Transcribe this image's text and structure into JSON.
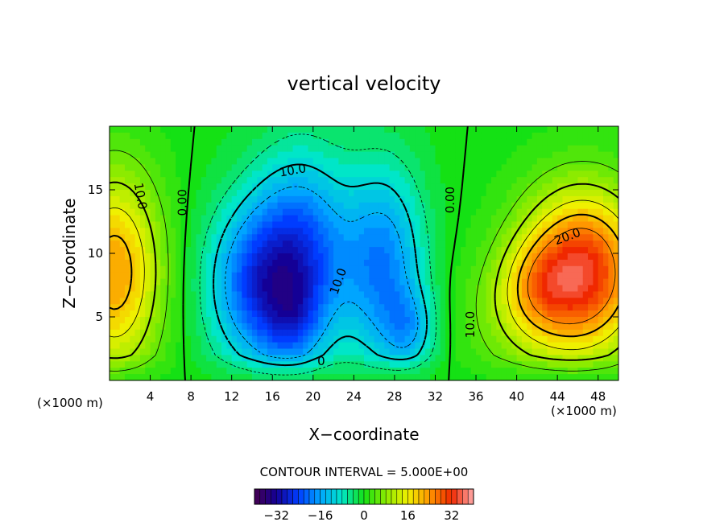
{
  "chart_data": {
    "type": "heatmap",
    "title": "vertical velocity",
    "xlabel": "X−coordinate",
    "ylabel": "Z−coordinate",
    "x_unit_left": "(×1000 m)",
    "x_unit_right": "(×1000 m)",
    "xlim": [
      0,
      50
    ],
    "ylim": [
      0,
      20
    ],
    "x_ticks": [
      4,
      8,
      12,
      16,
      20,
      24,
      28,
      32,
      36,
      40,
      44,
      48
    ],
    "y_ticks": [
      5,
      10,
      15
    ],
    "contour_interval_text": "CONTOUR INTERVAL = 5.000E+00",
    "colorbar": {
      "min": -40,
      "max": 40,
      "ticks": [
        -32,
        -16,
        0,
        16,
        32
      ],
      "tick_labels": [
        "−32",
        "−16",
        "0",
        "16",
        "32"
      ]
    },
    "contour_labels": [
      {
        "text": "10.0",
        "x": 3.0,
        "z": 14.5,
        "rotate": 80
      },
      {
        "text": "0.00",
        "x": 7.2,
        "z": 14.0,
        "rotate": -90
      },
      {
        "text": "10.0",
        "x": 18.0,
        "z": 16.5,
        "rotate": -10
      },
      {
        "text": "10.0",
        "x": 22.5,
        "z": 7.8,
        "rotate": -70
      },
      {
        "text": "0",
        "x": 20.8,
        "z": 1.5,
        "rotate": 0
      },
      {
        "text": "0.00",
        "x": 33.5,
        "z": 14.2,
        "rotate": -90
      },
      {
        "text": "10.0",
        "x": 35.5,
        "z": 4.4,
        "rotate": -90
      },
      {
        "text": "20.0",
        "x": 45.0,
        "z": 11.3,
        "rotate": -20
      }
    ],
    "field_sources": [
      {
        "x": 0.5,
        "z": 8.5,
        "sx": 3.2,
        "sz": 5.5,
        "amp": 23
      },
      {
        "x": 14.5,
        "z": 7.5,
        "sx": 3.5,
        "sz": 4.5,
        "amp": -20
      },
      {
        "x": 19.0,
        "z": 10.0,
        "sx": 3.5,
        "sz": 5.5,
        "amp": -20
      },
      {
        "x": 18.0,
        "z": 4.5,
        "sx": 2.0,
        "sz": 2.5,
        "amp": -8
      },
      {
        "x": 27.0,
        "z": 9.0,
        "sx": 2.8,
        "sz": 5.5,
        "amp": -18
      },
      {
        "x": 29.5,
        "z": 4.0,
        "sx": 1.8,
        "sz": 2.2,
        "amp": -10
      },
      {
        "x": 46.5,
        "z": 8.5,
        "sx": 4.2,
        "sz": 4.5,
        "amp": 33
      },
      {
        "x": 42.0,
        "z": 7.5,
        "sx": 2.5,
        "sz": 2.5,
        "amp": 7
      },
      {
        "x": 40.0,
        "z": 5.0,
        "sx": 4.0,
        "sz": 3.5,
        "amp": 6
      }
    ],
    "legend": "bottom-center",
    "grid": false
  }
}
